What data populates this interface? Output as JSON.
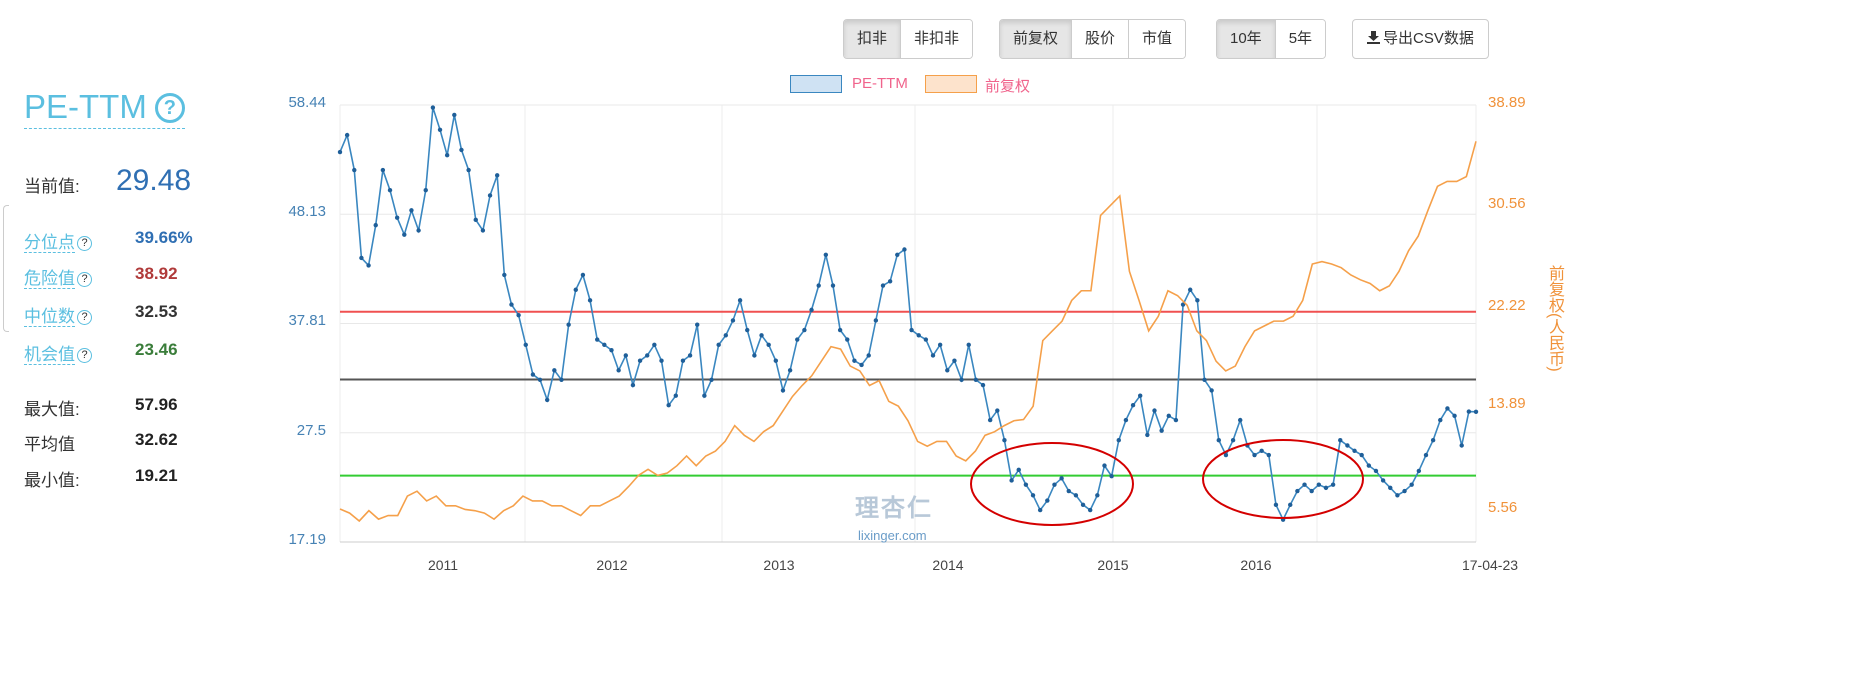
{
  "toolbar": {
    "group1": [
      {
        "label": "扣非",
        "active": true
      },
      {
        "label": "非扣非",
        "active": false
      }
    ],
    "group2": [
      {
        "label": "前复权",
        "active": true
      },
      {
        "label": "股价",
        "active": false
      },
      {
        "label": "市值",
        "active": false
      }
    ],
    "group3": [
      {
        "label": "10年",
        "active": true
      },
      {
        "label": "5年",
        "active": false
      }
    ],
    "export_label": "导出CSV数据",
    "export_icon": "download-icon"
  },
  "panel": {
    "title": "PE-TTM",
    "title_help_icon": "?",
    "current_label": "当前值:",
    "current_value": "29.48",
    "stats": [
      {
        "label": "分位点",
        "value": "39.66%",
        "color": "#2f6fb3",
        "help": true
      },
      {
        "label": "危险值",
        "value": "38.92",
        "color": "#b03a3a",
        "help": true
      },
      {
        "label": "中位数",
        "value": "32.53",
        "color": "#333333",
        "help": true
      },
      {
        "label": "机会值",
        "value": "23.46",
        "color": "#3a7d3a",
        "help": true
      }
    ],
    "summary": [
      {
        "label": "最大值:",
        "value": "57.96"
      },
      {
        "label": "平均值",
        "value": "32.62"
      },
      {
        "label": "最小值:",
        "value": "19.21"
      }
    ],
    "help_glyph": "?"
  },
  "watermark": {
    "line1": "理杏仁",
    "line2": "lixinger.com"
  },
  "chart_data": {
    "type": "line",
    "legend": [
      "PE-TTM",
      "前复权"
    ],
    "legend_placement": "top-center",
    "x_range": [
      "2010-05-15",
      "2017-04-23"
    ],
    "x_ticks": [
      "2011",
      "2012",
      "2013",
      "2014",
      "2015",
      "2016",
      "17-04-23"
    ],
    "y_left": {
      "ticks": [
        "58.44",
        "48.13",
        "37.81",
        "27.5",
        "17.19"
      ],
      "range": [
        17.19,
        58.44
      ]
    },
    "y_right": {
      "ticks": [
        "38.89",
        "30.56",
        "22.22",
        "13.89",
        "5.56"
      ],
      "range": [
        2.92,
        38.89
      ],
      "label": "前复权(人民币)"
    },
    "grid": true,
    "reference_lines": [
      {
        "name": "危险值",
        "value": 38.92,
        "color": "#f05050"
      },
      {
        "name": "中位数",
        "value": 32.53,
        "color": "#555555"
      },
      {
        "name": "机会值",
        "value": 23.46,
        "color": "#33cc33"
      }
    ],
    "series": [
      {
        "name": "PE-TTM",
        "axis": "left",
        "color": "#3a87c0",
        "markers": true,
        "values": [
          54.0,
          55.6,
          52.3,
          44.0,
          43.3,
          47.1,
          52.3,
          50.4,
          47.8,
          46.2,
          48.5,
          46.6,
          50.4,
          58.2,
          56.1,
          53.7,
          57.5,
          54.2,
          52.3,
          47.6,
          46.6,
          49.9,
          51.8,
          42.4,
          39.6,
          38.6,
          35.8,
          33.0,
          32.5,
          30.6,
          33.4,
          32.5,
          37.7,
          41.0,
          42.4,
          40.0,
          36.3,
          35.8,
          35.3,
          33.4,
          34.8,
          32.0,
          34.3,
          34.8,
          35.8,
          34.3,
          30.1,
          31.0,
          34.3,
          34.8,
          37.7,
          31.0,
          32.5,
          35.8,
          36.7,
          38.1,
          40.0,
          37.2,
          34.8,
          36.7,
          35.8,
          34.3,
          31.5,
          33.4,
          36.3,
          37.2,
          39.1,
          41.4,
          44.3,
          41.4,
          37.2,
          36.3,
          34.3,
          33.9,
          34.8,
          38.1,
          41.4,
          41.8,
          44.3,
          44.8,
          37.2,
          36.7,
          36.3,
          34.8,
          35.8,
          33.4,
          34.3,
          32.5,
          35.8,
          32.5,
          32.0,
          28.7,
          29.6,
          26.8,
          23.0,
          24.0,
          22.6,
          21.6,
          20.2,
          21.1,
          22.6,
          23.2,
          22.0,
          21.6,
          20.7,
          20.2,
          21.6,
          24.4,
          23.4,
          26.8,
          28.7,
          30.1,
          31.0,
          27.3,
          29.6,
          27.7,
          29.1,
          28.7,
          39.6,
          41.0,
          40.0,
          32.5,
          31.5,
          26.8,
          25.4,
          26.8,
          28.7,
          26.3,
          25.4,
          25.8,
          25.4,
          20.7,
          19.3,
          20.7,
          22.0,
          22.6,
          22.0,
          22.6,
          22.3,
          22.6,
          26.8,
          26.3,
          25.8,
          25.4,
          24.4,
          23.9,
          23.0,
          22.3,
          21.6,
          22.0,
          22.6,
          23.9,
          25.4,
          26.8,
          28.7,
          29.8,
          29.1,
          26.3,
          29.5,
          29.48
        ]
      },
      {
        "name": "前复权",
        "axis": "right",
        "color": "#f5a04a",
        "markers": false,
        "values": [
          5.64,
          5.3,
          4.65,
          5.5,
          4.8,
          5.1,
          5.1,
          6.7,
          7.1,
          6.3,
          6.7,
          5.9,
          5.9,
          5.6,
          5.5,
          5.3,
          4.8,
          5.5,
          5.9,
          6.7,
          6.3,
          6.3,
          5.9,
          5.9,
          5.5,
          5.1,
          5.9,
          5.9,
          6.3,
          6.7,
          7.5,
          8.4,
          8.9,
          8.4,
          8.6,
          9.2,
          10.0,
          9.2,
          10.0,
          10.4,
          11.2,
          12.5,
          11.7,
          11.2,
          12.0,
          12.5,
          13.7,
          14.9,
          15.8,
          16.6,
          17.8,
          19.0,
          18.8,
          17.4,
          17.0,
          15.8,
          16.2,
          14.5,
          14.1,
          12.9,
          11.2,
          10.8,
          11.2,
          11.2,
          10.0,
          9.6,
          10.4,
          11.7,
          12.0,
          12.5,
          12.9,
          13.0,
          14.1,
          19.5,
          20.3,
          21.1,
          22.8,
          23.6,
          23.6,
          29.8,
          30.6,
          31.4,
          25.2,
          22.8,
          20.3,
          21.5,
          23.6,
          23.2,
          22.4,
          20.3,
          19.5,
          17.8,
          17.0,
          17.4,
          19.0,
          20.3,
          20.7,
          21.1,
          21.1,
          21.5,
          22.8,
          25.8,
          26.0,
          25.8,
          25.5,
          24.9,
          24.5,
          24.2,
          23.6,
          24.0,
          25.2,
          26.9,
          28.1,
          30.2,
          32.2,
          32.6,
          32.6,
          33.0,
          35.9
        ]
      }
    ]
  }
}
